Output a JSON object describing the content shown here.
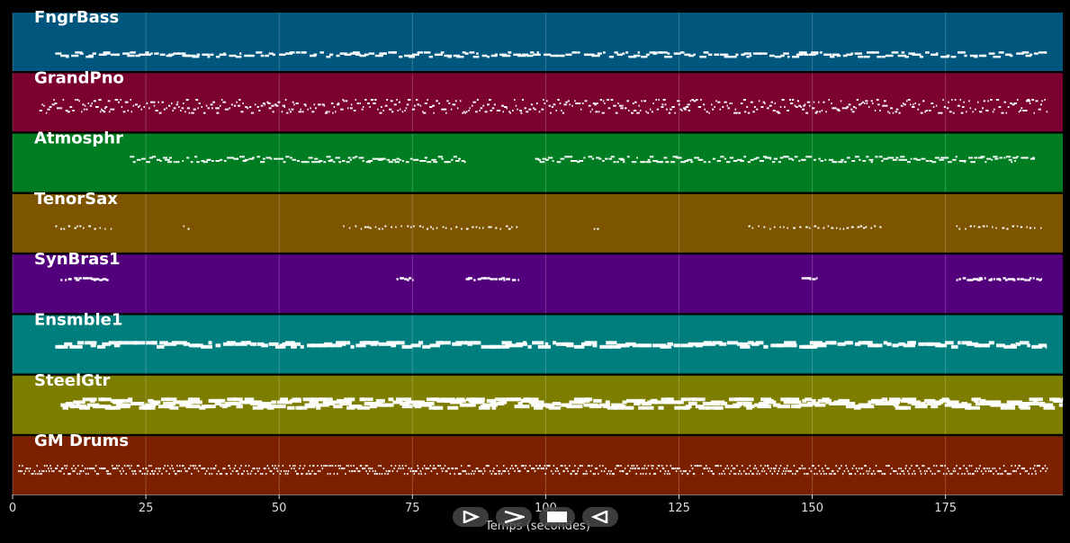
{
  "chart_data": {
    "type": "piano-roll",
    "xlabel": "Temps (secondes)",
    "xlim": [
      0,
      197
    ],
    "xticks": [
      0,
      25,
      50,
      75,
      100,
      125,
      150,
      175
    ],
    "grid": true,
    "tracks": [
      {
        "name": "FngrBass",
        "color": "#00567d",
        "active": [
          [
            8,
            194
          ]
        ],
        "pattern": "bass"
      },
      {
        "name": "GrandPno",
        "color": "#7b0130",
        "active": [
          [
            5,
            194
          ]
        ],
        "pattern": "piano"
      },
      {
        "name": "Atmosphr",
        "color": "#007d22",
        "active": [
          [
            22,
            85
          ],
          [
            98,
            192
          ]
        ],
        "pattern": "pad"
      },
      {
        "name": "TenorSax",
        "color": "#7d5400",
        "active": [
          [
            8,
            19
          ],
          [
            32,
            34
          ],
          [
            62,
            95
          ],
          [
            109,
            110
          ],
          [
            138,
            163
          ],
          [
            177,
            193
          ]
        ],
        "pattern": "sax"
      },
      {
        "name": "SynBras1",
        "color": "#53007d",
        "active": [
          [
            9,
            18
          ],
          [
            72,
            75
          ],
          [
            85,
            95
          ],
          [
            148,
            151
          ],
          [
            177,
            193
          ]
        ],
        "pattern": "brass"
      },
      {
        "name": "Ensmble1",
        "color": "#007d7d",
        "active": [
          [
            8,
            194
          ]
        ],
        "pattern": "ensemble"
      },
      {
        "name": "SteelGtr",
        "color": "#7d7d00",
        "active": [
          [
            9,
            197
          ]
        ],
        "pattern": "guitar"
      },
      {
        "name": "GM Drums",
        "color": "#7b2100",
        "active": [
          [
            1,
            194
          ]
        ],
        "pattern": "drums"
      }
    ]
  },
  "controls": [
    {
      "name": "play-button",
      "icon": "play-icon"
    },
    {
      "name": "forward-button",
      "icon": "chevron-right-icon"
    },
    {
      "name": "stop-button",
      "icon": "stop-icon"
    },
    {
      "name": "rewind-button",
      "icon": "rewind-icon"
    }
  ]
}
